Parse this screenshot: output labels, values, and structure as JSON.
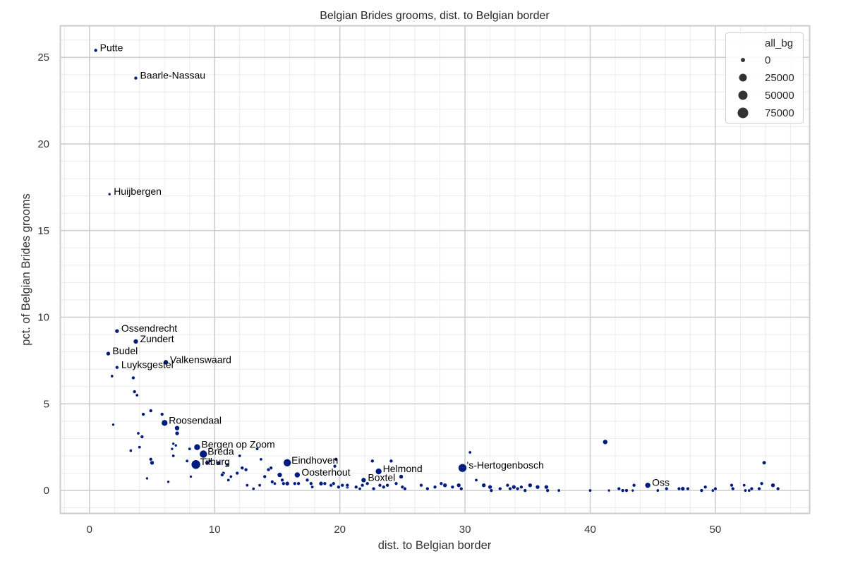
{
  "chart_data": {
    "type": "scatter",
    "title": "Belgian Brides grooms, dist. to Belgian border",
    "xlabel": "dist. to Belgian border",
    "ylabel": "pct. of Belgian Brides grooms",
    "xlim": [
      -2.3,
      57.5
    ],
    "ylim": [
      -1.3,
      26.8
    ],
    "xticks": [
      0,
      10,
      20,
      30,
      40,
      50
    ],
    "yticks": [
      0,
      5,
      10,
      15,
      20,
      25
    ],
    "grid": true,
    "minor_grid": true,
    "marker_color": "#001c7f",
    "size_variable": "all_bg",
    "legend": {
      "title": "all_bg",
      "position": "upper right",
      "entries": [
        {
          "label": "0",
          "r": 3
        },
        {
          "label": "25000",
          "r": 5.5
        },
        {
          "label": "50000",
          "r": 6.5
        },
        {
          "label": "75000",
          "r": 7.5
        }
      ]
    },
    "labeled_points": [
      {
        "name": "Putte",
        "x": 0.5,
        "y": 25.4,
        "r": 2.5
      },
      {
        "name": "Baarle-Nassau",
        "x": 3.7,
        "y": 23.8,
        "r": 2.5
      },
      {
        "name": "Huijbergen",
        "x": 1.6,
        "y": 17.1,
        "r": 2
      },
      {
        "name": "Ossendrecht",
        "x": 2.2,
        "y": 9.2,
        "r": 3
      },
      {
        "name": "Zundert",
        "x": 3.7,
        "y": 8.6,
        "r": 3.5
      },
      {
        "name": "Budel",
        "x": 1.5,
        "y": 7.9,
        "r": 3
      },
      {
        "name": "Luyksgestel",
        "x": 2.2,
        "y": 7.1,
        "r": 2.5
      },
      {
        "name": "Valkenswaard",
        "x": 6.1,
        "y": 7.4,
        "r": 3.5
      },
      {
        "name": "Roosendaal",
        "x": 6.0,
        "y": 3.9,
        "r": 4.5
      },
      {
        "name": "Bergen op Zoom",
        "x": 8.6,
        "y": 2.5,
        "r": 4.5
      },
      {
        "name": "Breda",
        "x": 9.1,
        "y": 2.1,
        "r": 5.5
      },
      {
        "name": "Tilburg",
        "x": 8.5,
        "y": 1.5,
        "r": 6.5
      },
      {
        "name": "Eindhoven",
        "x": 15.8,
        "y": 1.6,
        "r": 5.5
      },
      {
        "name": "Oosterhout",
        "x": 16.6,
        "y": 0.9,
        "r": 4
      },
      {
        "name": "Helmond",
        "x": 23.1,
        "y": 1.1,
        "r": 4.5
      },
      {
        "name": "Boxtel",
        "x": 21.9,
        "y": 0.6,
        "r": 3.5
      },
      {
        "name": "'s-Hertogenbosch",
        "x": 29.8,
        "y": 1.3,
        "r": 6
      },
      {
        "name": "Oss",
        "x": 44.6,
        "y": 0.3,
        "r": 4
      }
    ],
    "points": [
      [
        1.8,
        6.6,
        2.2
      ],
      [
        3.5,
        6.5,
        2.5
      ],
      [
        3.6,
        5.7,
        2.5
      ],
      [
        3.8,
        5.5,
        2.2
      ],
      [
        4.9,
        4.6,
        2.5
      ],
      [
        4.3,
        4.4,
        2.5
      ],
      [
        5.8,
        4.4,
        2.5
      ],
      [
        1.9,
        3.8,
        2
      ],
      [
        7.0,
        3.6,
        3.5
      ],
      [
        7.0,
        3.3,
        3
      ],
      [
        3.9,
        3.3,
        2.2
      ],
      [
        4.2,
        3.1,
        2.5
      ],
      [
        6.7,
        2.7,
        2
      ],
      [
        6.9,
        2.6,
        2
      ],
      [
        8.0,
        2.4,
        2.2
      ],
      [
        6.6,
        2.4,
        2
      ],
      [
        3.3,
        2.3,
        2.2
      ],
      [
        4.0,
        2.5,
        2.2
      ],
      [
        6.7,
        2.0,
        2.2
      ],
      [
        4.9,
        1.8,
        2.5
      ],
      [
        5.0,
        1.6,
        3
      ],
      [
        7.8,
        1.7,
        2.2
      ],
      [
        9.6,
        1.7,
        2.2
      ],
      [
        9.4,
        1.6,
        3
      ],
      [
        8.1,
        0.8,
        2
      ],
      [
        4.6,
        0.7,
        2
      ],
      [
        6.3,
        0.5,
        2
      ],
      [
        12.0,
        2.0,
        2.2
      ],
      [
        13.4,
        2.4,
        2.2
      ],
      [
        13.7,
        1.8,
        2.2
      ],
      [
        11.0,
        1.5,
        2.2
      ],
      [
        10.3,
        1.6,
        2.5
      ],
      [
        12.2,
        1.3,
        2.5
      ],
      [
        12.5,
        1.2,
        2.5
      ],
      [
        11.8,
        1.0,
        2.5
      ],
      [
        10.7,
        1.0,
        2.5
      ],
      [
        10.6,
        0.9,
        2.5
      ],
      [
        11.3,
        0.8,
        2.2
      ],
      [
        11.1,
        0.6,
        2.2
      ],
      [
        14.5,
        1.3,
        2.5
      ],
      [
        14.3,
        1.2,
        2.5
      ],
      [
        14.0,
        0.8,
        2.5
      ],
      [
        14.6,
        0.5,
        2.5
      ],
      [
        15.2,
        0.9,
        3.5
      ],
      [
        15.4,
        0.6,
        2.5
      ],
      [
        15.5,
        0.4,
        2.5
      ],
      [
        15.8,
        0.4,
        3
      ],
      [
        14.8,
        0.4,
        2.2
      ],
      [
        13.6,
        0.3,
        2.2
      ],
      [
        12.6,
        0.3,
        2.2
      ],
      [
        13.1,
        0.1,
        2.2
      ],
      [
        16.4,
        0.4,
        2.5
      ],
      [
        16.7,
        0.4,
        2.5
      ],
      [
        17.4,
        0.6,
        2.5
      ],
      [
        17.7,
        0.4,
        2.5
      ],
      [
        17.8,
        0.2,
        2.2
      ],
      [
        18.5,
        0.4,
        3
      ],
      [
        18.8,
        0.4,
        2.5
      ],
      [
        19.3,
        0.3,
        2.5
      ],
      [
        19.5,
        0.4,
        2.5
      ],
      [
        19.9,
        0.2,
        2.5
      ],
      [
        20.2,
        0.3,
        2.5
      ],
      [
        20.6,
        0.2,
        2.5
      ],
      [
        20.6,
        0.3,
        2.5
      ],
      [
        21.3,
        0.2,
        2.5
      ],
      [
        21.6,
        0.1,
        2.2
      ],
      [
        21.8,
        0.3,
        2.5
      ],
      [
        22.2,
        0.4,
        2.5
      ],
      [
        22.7,
        0.1,
        2.5
      ],
      [
        23.2,
        0.3,
        2.5
      ],
      [
        23.5,
        0.2,
        2.5
      ],
      [
        23.8,
        0.3,
        2.5
      ],
      [
        24.5,
        0.4,
        2.5
      ],
      [
        25.0,
        0.2,
        2.5
      ],
      [
        25.2,
        0.1,
        2.5
      ],
      [
        19.6,
        1.4,
        2.5
      ],
      [
        19.7,
        1.8,
        2.5
      ],
      [
        22.6,
        1.7,
        2.5
      ],
      [
        24.1,
        1.7,
        2.5
      ],
      [
        24.9,
        0.8,
        3
      ],
      [
        30.4,
        2.2,
        2.2
      ],
      [
        30.9,
        0.6,
        2.2
      ],
      [
        26.5,
        0.3,
        2.5
      ],
      [
        27.0,
        0.1,
        2.5
      ],
      [
        27.6,
        0.2,
        2.5
      ],
      [
        28.1,
        0.4,
        2.5
      ],
      [
        28.4,
        0.3,
        3
      ],
      [
        29.0,
        0.2,
        2.5
      ],
      [
        29.5,
        0.3,
        3
      ],
      [
        29.7,
        0.1,
        2.5
      ],
      [
        31.5,
        0.3,
        3
      ],
      [
        32.0,
        0.2,
        3
      ],
      [
        32.1,
        0.0,
        2.5
      ],
      [
        32.8,
        0.1,
        2.5
      ],
      [
        33.4,
        0.3,
        2.5
      ],
      [
        33.6,
        0.1,
        2.5
      ],
      [
        33.9,
        0.2,
        3
      ],
      [
        34.2,
        0.1,
        2.5
      ],
      [
        34.5,
        0.2,
        2.5
      ],
      [
        34.8,
        0.0,
        2.5
      ],
      [
        35.2,
        0.3,
        3
      ],
      [
        35.8,
        0.2,
        3
      ],
      [
        36.5,
        0.2,
        3
      ],
      [
        36.6,
        0.0,
        2.5
      ],
      [
        37.5,
        0.0,
        2.2
      ],
      [
        40.0,
        0.0,
        2.2
      ],
      [
        41.2,
        2.8,
        3.5
      ],
      [
        41.5,
        0.0,
        2
      ],
      [
        42.3,
        0.1,
        2.5
      ],
      [
        42.6,
        0.0,
        2.5
      ],
      [
        42.9,
        0.0,
        2.5
      ],
      [
        43.4,
        0.0,
        2
      ],
      [
        43.5,
        0.3,
        2.5
      ],
      [
        45.4,
        0.0,
        2.2
      ],
      [
        46.1,
        0.1,
        2.5
      ],
      [
        47.1,
        0.1,
        2.5
      ],
      [
        47.4,
        0.1,
        3
      ],
      [
        47.8,
        0.1,
        2.5
      ],
      [
        48.9,
        0.0,
        2.5
      ],
      [
        49.2,
        0.2,
        2.5
      ],
      [
        49.8,
        0.0,
        2.2
      ],
      [
        50.0,
        0.1,
        2.5
      ],
      [
        51.3,
        0.3,
        2.5
      ],
      [
        51.4,
        0.1,
        2.5
      ],
      [
        52.3,
        0.3,
        2.2
      ],
      [
        52.4,
        0.0,
        2.2
      ],
      [
        52.7,
        0.0,
        2.2
      ],
      [
        52.9,
        0.1,
        2.5
      ],
      [
        53.5,
        0.1,
        2.5
      ],
      [
        53.7,
        0.4,
        2.5
      ],
      [
        53.9,
        1.6,
        2.8
      ],
      [
        54.6,
        0.3,
        3
      ],
      [
        55.0,
        0.1,
        2.5
      ]
    ]
  }
}
